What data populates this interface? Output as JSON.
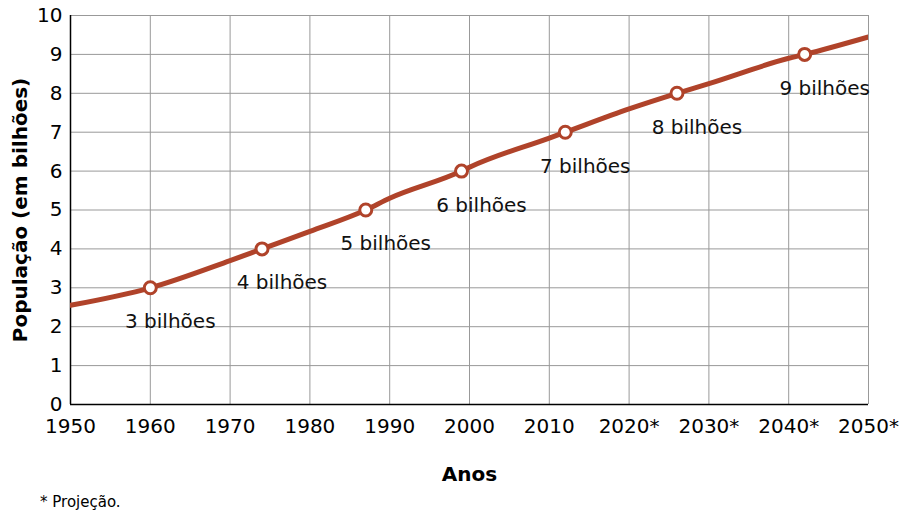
{
  "chart_data": {
    "type": "line",
    "x_label": "Anos",
    "y_label": "População (em bilhões)",
    "caption": "* Projeção.",
    "x": [
      1950,
      1960,
      1970,
      1974,
      1980,
      1987,
      1990,
      1999,
      2000,
      2010,
      2012,
      2020,
      2026,
      2030,
      2040,
      2042,
      2050
    ],
    "values": [
      2.55,
      3.0,
      3.7,
      4.0,
      4.45,
      5.0,
      5.3,
      6.0,
      6.1,
      6.85,
      7.0,
      7.6,
      8.0,
      8.25,
      8.9,
      9.0,
      9.45
    ],
    "color": "#b0432a",
    "marker": "circle",
    "annotations": [
      {
        "x": 1960,
        "y": 3,
        "text": "3 bilhões"
      },
      {
        "x": 1974,
        "y": 4,
        "text": "4 bilhões"
      },
      {
        "x": 1987,
        "y": 5,
        "text": "5 bilhões"
      },
      {
        "x": 1999,
        "y": 6,
        "text": "6 bilhões"
      },
      {
        "x": 2012,
        "y": 7,
        "text": "7 bilhões"
      },
      {
        "x": 2026,
        "y": 8,
        "text": "8 bilhões"
      },
      {
        "x": 2042,
        "y": 9,
        "text": "9 bilhões"
      }
    ],
    "xlim": [
      1950,
      2050
    ],
    "xticks": [
      1950,
      1960,
      1970,
      1980,
      1990,
      2000,
      2010,
      {
        "value": 2020,
        "label": "2020*"
      },
      {
        "value": 2030,
        "label": "2030*"
      },
      {
        "value": 2040,
        "label": "2040*"
      },
      {
        "value": 2050,
        "label": "2050*"
      }
    ],
    "ylim": [
      0,
      10
    ],
    "yticks": [
      0,
      1,
      2,
      3,
      4,
      5,
      6,
      7,
      8,
      9,
      10
    ],
    "grid": true
  }
}
